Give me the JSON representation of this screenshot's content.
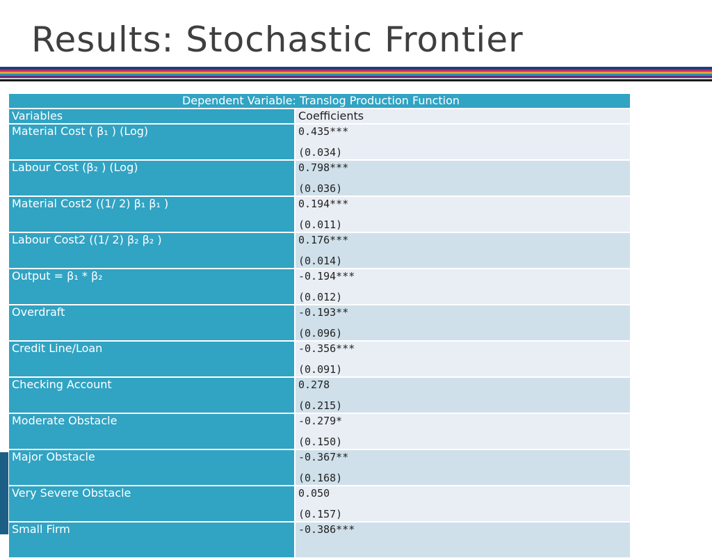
{
  "header": {
    "title": "Results: Stochastic Frontier"
  },
  "table": {
    "caption": "Dependent Variable: Translog Production Function",
    "columns": [
      "Variables",
      "Coefficients"
    ],
    "rows": [
      {
        "variable": "Material Cost ( β₁ ) (Log)",
        "coefficient": "0.435***",
        "se": "(0.034)"
      },
      {
        "variable": "Labour Cost (β₂ ) (Log)",
        "coefficient": "0.798***",
        "se": "(0.036)"
      },
      {
        "variable": "Material Cost2 ((1/ 2) β₁  β₁ )",
        "coefficient": "0.194***",
        "se": "(0.011)"
      },
      {
        "variable": "Labour Cost2 ((1/ 2) β₂  β₂ )",
        "coefficient": "0.176***",
        "se": "(0.014)"
      },
      {
        "variable": "Output = β₁ * β₂",
        "coefficient": "-0.194***",
        "se": "(0.012)"
      },
      {
        "variable": "Overdraft",
        "coefficient": "-0.193**",
        "se": "(0.096)"
      },
      {
        "variable": "Credit Line/Loan",
        "coefficient": "-0.356***",
        "se": "(0.091)"
      },
      {
        "variable": "Checking Account",
        "coefficient": "0.278",
        "se": "(0.215)"
      },
      {
        "variable": "Moderate Obstacle",
        "coefficient": "-0.279*",
        "se": "(0.150)"
      },
      {
        "variable": "Major Obstacle",
        "coefficient": "-0.367**",
        "se": "(0.168)"
      },
      {
        "variable": "Very Severe Obstacle",
        "coefficient": "0.050",
        "se": "(0.157)"
      },
      {
        "variable": "Small Firm",
        "coefficient": "-0.386***"
      }
    ]
  }
}
